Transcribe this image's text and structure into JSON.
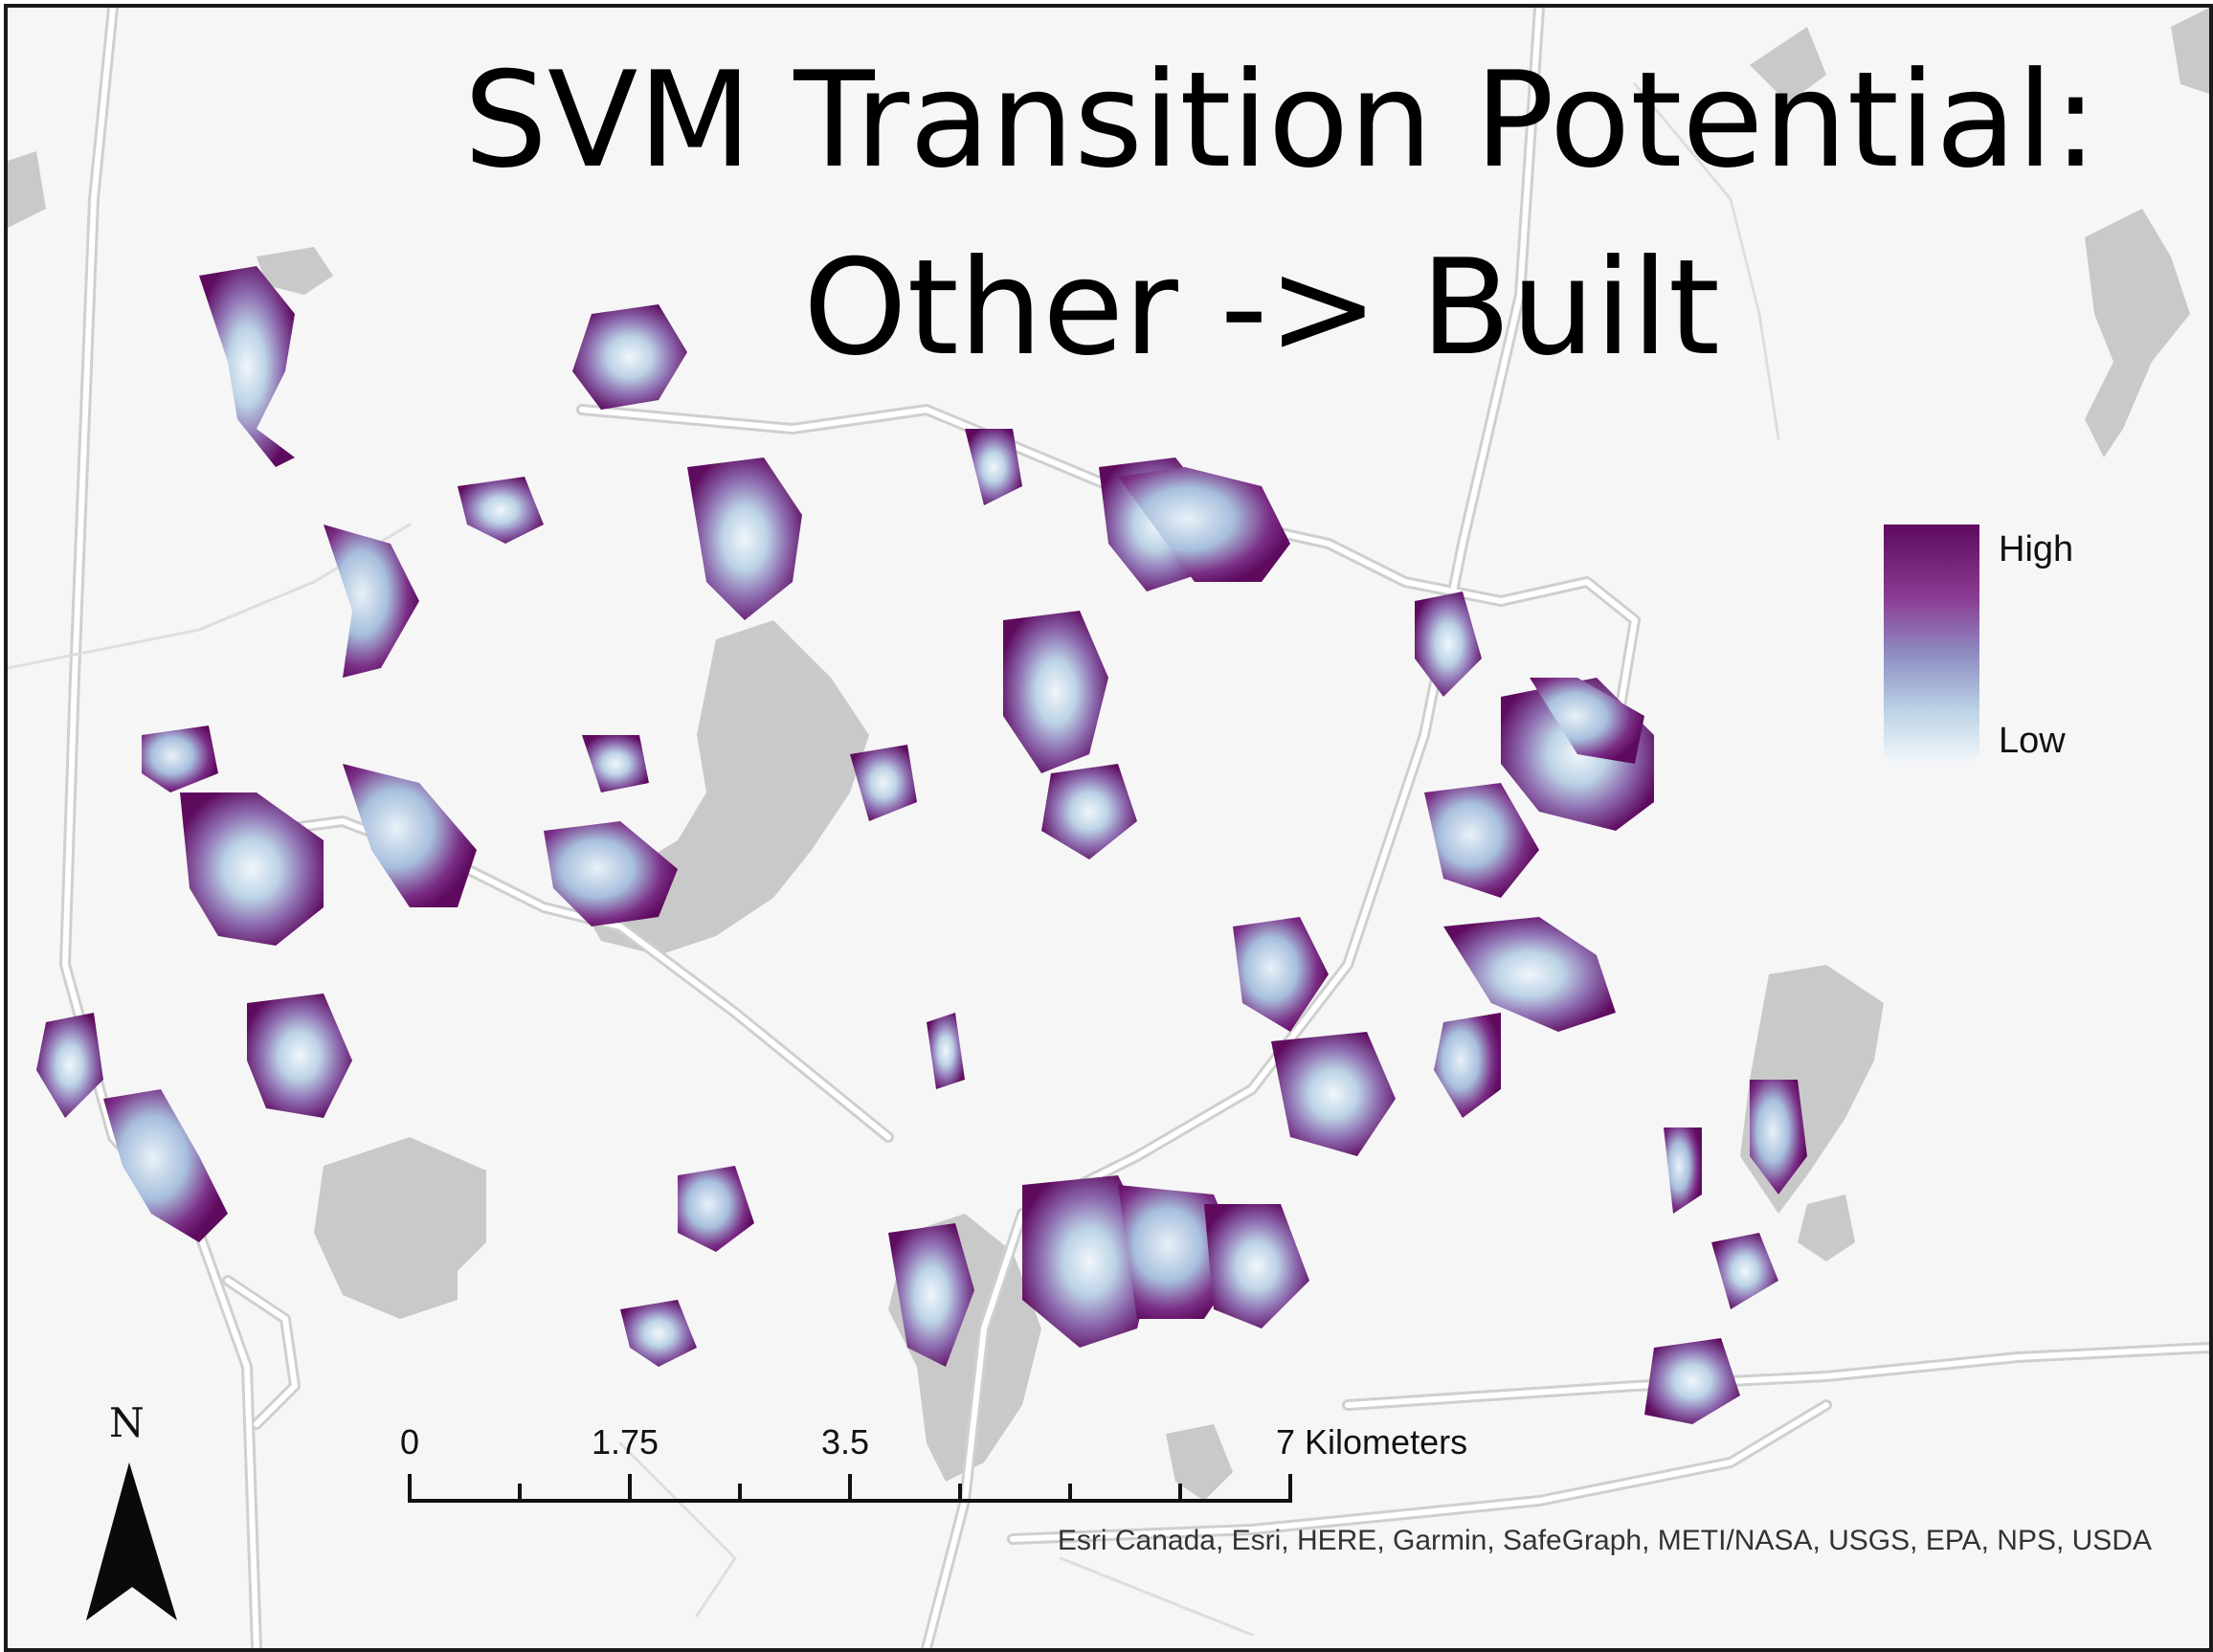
{
  "map": {
    "title_line1": "SVM Transition Potential:",
    "title_line2": "Other -> Built",
    "legend": {
      "high_label": "High",
      "low_label": "Low",
      "colors": [
        "#5e0b5e",
        "#8a3a91",
        "#8f8fc4",
        "#bcd3e6",
        "#f4f8fb"
      ]
    },
    "scale_bar": {
      "labels": [
        "0",
        "1.75",
        "3.5",
        "7 Kilometers"
      ],
      "unit": "Kilometers"
    },
    "north_arrow": {
      "letter": "N",
      "icon": "north-arrow-icon"
    },
    "attribution": "Esri Canada, Esri, HERE, Garmin, SafeGraph, METI/NASA, USGS, EPA, NPS, USDA",
    "colors": {
      "background": "#f6f6f6",
      "water": "#c9c9c9",
      "road": "#ffffff",
      "road_casing": "#cfcfcf",
      "high": "#5e0b5e",
      "low": "#f4f8fb"
    }
  }
}
